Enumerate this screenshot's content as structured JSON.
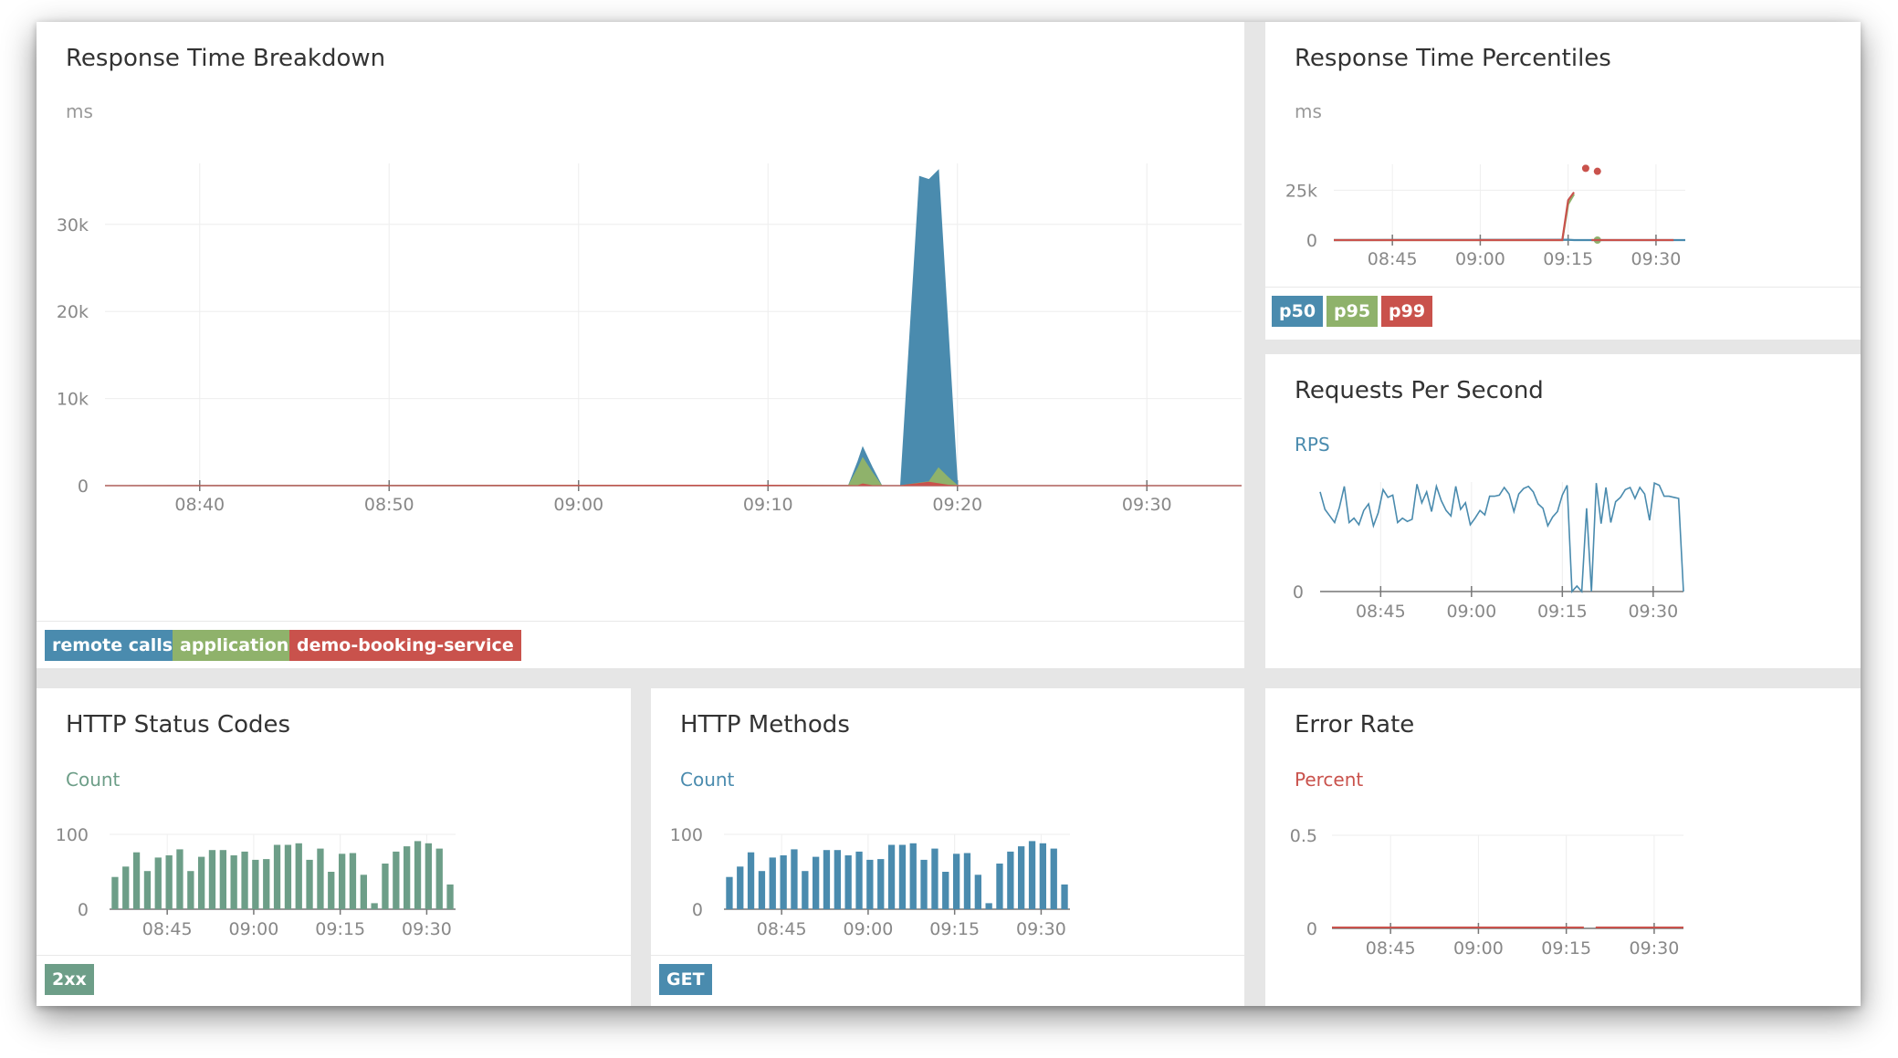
{
  "colors": {
    "remote_calls": "#4a8bae",
    "application": "#8fb26b",
    "service": "#c9524c",
    "status_2xx": "#6d9e88",
    "get": "#4a8bae",
    "rps": "#4a8bae",
    "grid": "#eeeeee",
    "axis": "#777777"
  },
  "panels": {
    "breakdown": {
      "title": "Response Time Breakdown",
      "unit": "ms",
      "legend": [
        "remote calls",
        "application",
        "demo-booking-service"
      ]
    },
    "percentiles": {
      "title": "Response Time Percentiles",
      "unit": "ms",
      "legend": [
        "p50",
        "p95",
        "p99"
      ]
    },
    "rps": {
      "title": "Requests Per Second",
      "unit": "RPS"
    },
    "status": {
      "title": "HTTP Status Codes",
      "unit": "Count",
      "legend": [
        "2xx"
      ]
    },
    "methods": {
      "title": "HTTP Methods",
      "unit": "Count",
      "legend": [
        "GET"
      ]
    },
    "error": {
      "title": "Error Rate",
      "unit": "Percent"
    }
  },
  "chart_data": [
    {
      "id": "breakdown",
      "type": "area",
      "title": "Response Time Breakdown",
      "ylabel": "ms",
      "x_ticks": [
        "08:40",
        "08:50",
        "09:00",
        "09:10",
        "09:20",
        "09:30"
      ],
      "y_ticks": [
        "0",
        "10k",
        "20k",
        "30k"
      ],
      "ylim": [
        0,
        37000
      ],
      "stacked": true,
      "series": [
        {
          "name": "demo-booking-service",
          "points": [
            [
              "08:35",
              0
            ],
            [
              "09:10",
              50
            ],
            [
              "09:14:45",
              0
            ],
            [
              "09:15",
              200
            ],
            [
              "09:15:30",
              0
            ],
            [
              "09:17",
              0
            ],
            [
              "09:18:30",
              400
            ],
            [
              "09:19:30",
              50
            ],
            [
              "09:20",
              0
            ],
            [
              "09:35",
              0
            ]
          ]
        },
        {
          "name": "application",
          "points": [
            [
              "08:35",
              0
            ],
            [
              "09:10",
              0
            ],
            [
              "09:14:15",
              0
            ],
            [
              "09:15",
              3000
            ],
            [
              "09:16",
              0
            ],
            [
              "09:17",
              0
            ],
            [
              "09:18:30",
              50
            ],
            [
              "09:19",
              1800
            ],
            [
              "09:20",
              0
            ],
            [
              "09:35",
              0
            ]
          ]
        },
        {
          "name": "remote calls",
          "points": [
            [
              "08:35",
              0
            ],
            [
              "09:14:15",
              0
            ],
            [
              "09:15",
              1200
            ],
            [
              "09:16",
              0
            ],
            [
              "09:17",
              0
            ],
            [
              "09:18",
              35200
            ],
            [
              "09:19",
              34200
            ],
            [
              "09:20",
              0
            ],
            [
              "09:35",
              0
            ]
          ]
        }
      ]
    },
    {
      "id": "percentiles",
      "type": "line",
      "title": "Response Time Percentiles",
      "ylabel": "ms",
      "x_ticks": [
        "08:45",
        "09:00",
        "09:15",
        "09:30"
      ],
      "y_ticks": [
        "0",
        "25k"
      ],
      "ylim": [
        0,
        38000
      ],
      "series": [
        {
          "name": "p50",
          "points": [
            [
              "08:35",
              0
            ],
            [
              "09:15",
              200
            ],
            [
              "09:16",
              0
            ],
            [
              "09:35",
              0
            ]
          ]
        },
        {
          "name": "p95",
          "points": [
            [
              "08:35",
              0
            ],
            [
              "09:14",
              0
            ],
            [
              "09:15",
              18000
            ],
            [
              "09:16",
              23000
            ]
          ],
          "dots": [
            [
              "09:20",
              0
            ]
          ]
        },
        {
          "name": "p99",
          "points": [
            [
              "08:35",
              0
            ],
            [
              "09:14",
              0
            ],
            [
              "09:15",
              20000
            ],
            [
              "09:16",
              24000
            ]
          ],
          "dots": [
            [
              "09:18",
              36000
            ],
            [
              "09:20",
              34500
            ]
          ],
          "tail": [
            [
              "09:19",
              0
            ],
            [
              "09:33",
              0
            ]
          ]
        }
      ]
    },
    {
      "id": "rps",
      "type": "line",
      "title": "Requests Per Second",
      "ylabel": "RPS",
      "x_ticks": [
        "08:45",
        "09:00",
        "09:15",
        "09:30"
      ],
      "y_ticks": [
        "0"
      ],
      "ylim": [
        0,
        1
      ],
      "series": [
        {
          "name": "RPS",
          "values": [
            0.91,
            0.75,
            0.69,
            0.63,
            0.77,
            0.96,
            0.63,
            0.67,
            0.61,
            0.74,
            0.8,
            0.6,
            0.72,
            0.93,
            0.86,
            0.88,
            0.63,
            0.67,
            0.64,
            0.66,
            0.98,
            0.81,
            0.91,
            0.73,
            0.96,
            0.83,
            0.74,
            0.69,
            0.96,
            0.75,
            0.81,
            0.61,
            0.67,
            0.74,
            0.7,
            0.87,
            0.87,
            0.88,
            0.95,
            0.89,
            0.73,
            0.89,
            0.94,
            0.96,
            0.91,
            0.8,
            0.76,
            0.6,
            0.68,
            0.73,
            0.88,
            0.97,
            0.0,
            0.05,
            0.0,
            0.76,
            0.0,
            0.99,
            0.62,
            0.95,
            0.63,
            0.82,
            0.86,
            0.93,
            0.95,
            0.85,
            0.95,
            0.89,
            0.65,
            0.99,
            0.97,
            0.87,
            0.87,
            0.86,
            0.85,
            0.0
          ]
        }
      ]
    },
    {
      "id": "status",
      "type": "bar",
      "title": "HTTP Status Codes",
      "ylabel": "Count",
      "x_ticks": [
        "08:45",
        "09:00",
        "09:15",
        "09:30"
      ],
      "y_ticks": [
        "0",
        "100"
      ],
      "ylim": [
        0,
        100
      ],
      "series": [
        {
          "name": "2xx",
          "values": [
            43,
            57,
            76,
            51,
            69,
            72,
            80,
            51,
            70,
            79,
            79,
            72,
            77,
            66,
            67,
            86,
            86,
            88,
            66,
            81,
            50,
            74,
            75,
            46,
            8,
            61,
            77,
            84,
            91,
            88,
            81,
            33
          ]
        }
      ]
    },
    {
      "id": "methods",
      "type": "bar",
      "title": "HTTP Methods",
      "ylabel": "Count",
      "x_ticks": [
        "08:45",
        "09:00",
        "09:15",
        "09:30"
      ],
      "y_ticks": [
        "0",
        "100"
      ],
      "ylim": [
        0,
        100
      ],
      "series": [
        {
          "name": "GET",
          "values": [
            43,
            57,
            76,
            51,
            69,
            72,
            80,
            51,
            70,
            79,
            79,
            72,
            77,
            66,
            67,
            86,
            86,
            88,
            66,
            81,
            50,
            74,
            75,
            46,
            8,
            61,
            77,
            84,
            91,
            88,
            81,
            33
          ]
        }
      ]
    },
    {
      "id": "error",
      "type": "line",
      "title": "Error Rate",
      "ylabel": "Percent",
      "x_ticks": [
        "08:45",
        "09:00",
        "09:15",
        "09:30"
      ],
      "y_ticks": [
        "0",
        "0.5"
      ],
      "ylim": [
        0,
        0.5
      ],
      "series": [
        {
          "name": "Percent",
          "points": [
            [
              "08:35",
              0
            ],
            [
              "09:18",
              0
            ]
          ],
          "tail": [
            [
              "09:20",
              0
            ],
            [
              "09:35",
              0
            ]
          ]
        }
      ]
    }
  ]
}
